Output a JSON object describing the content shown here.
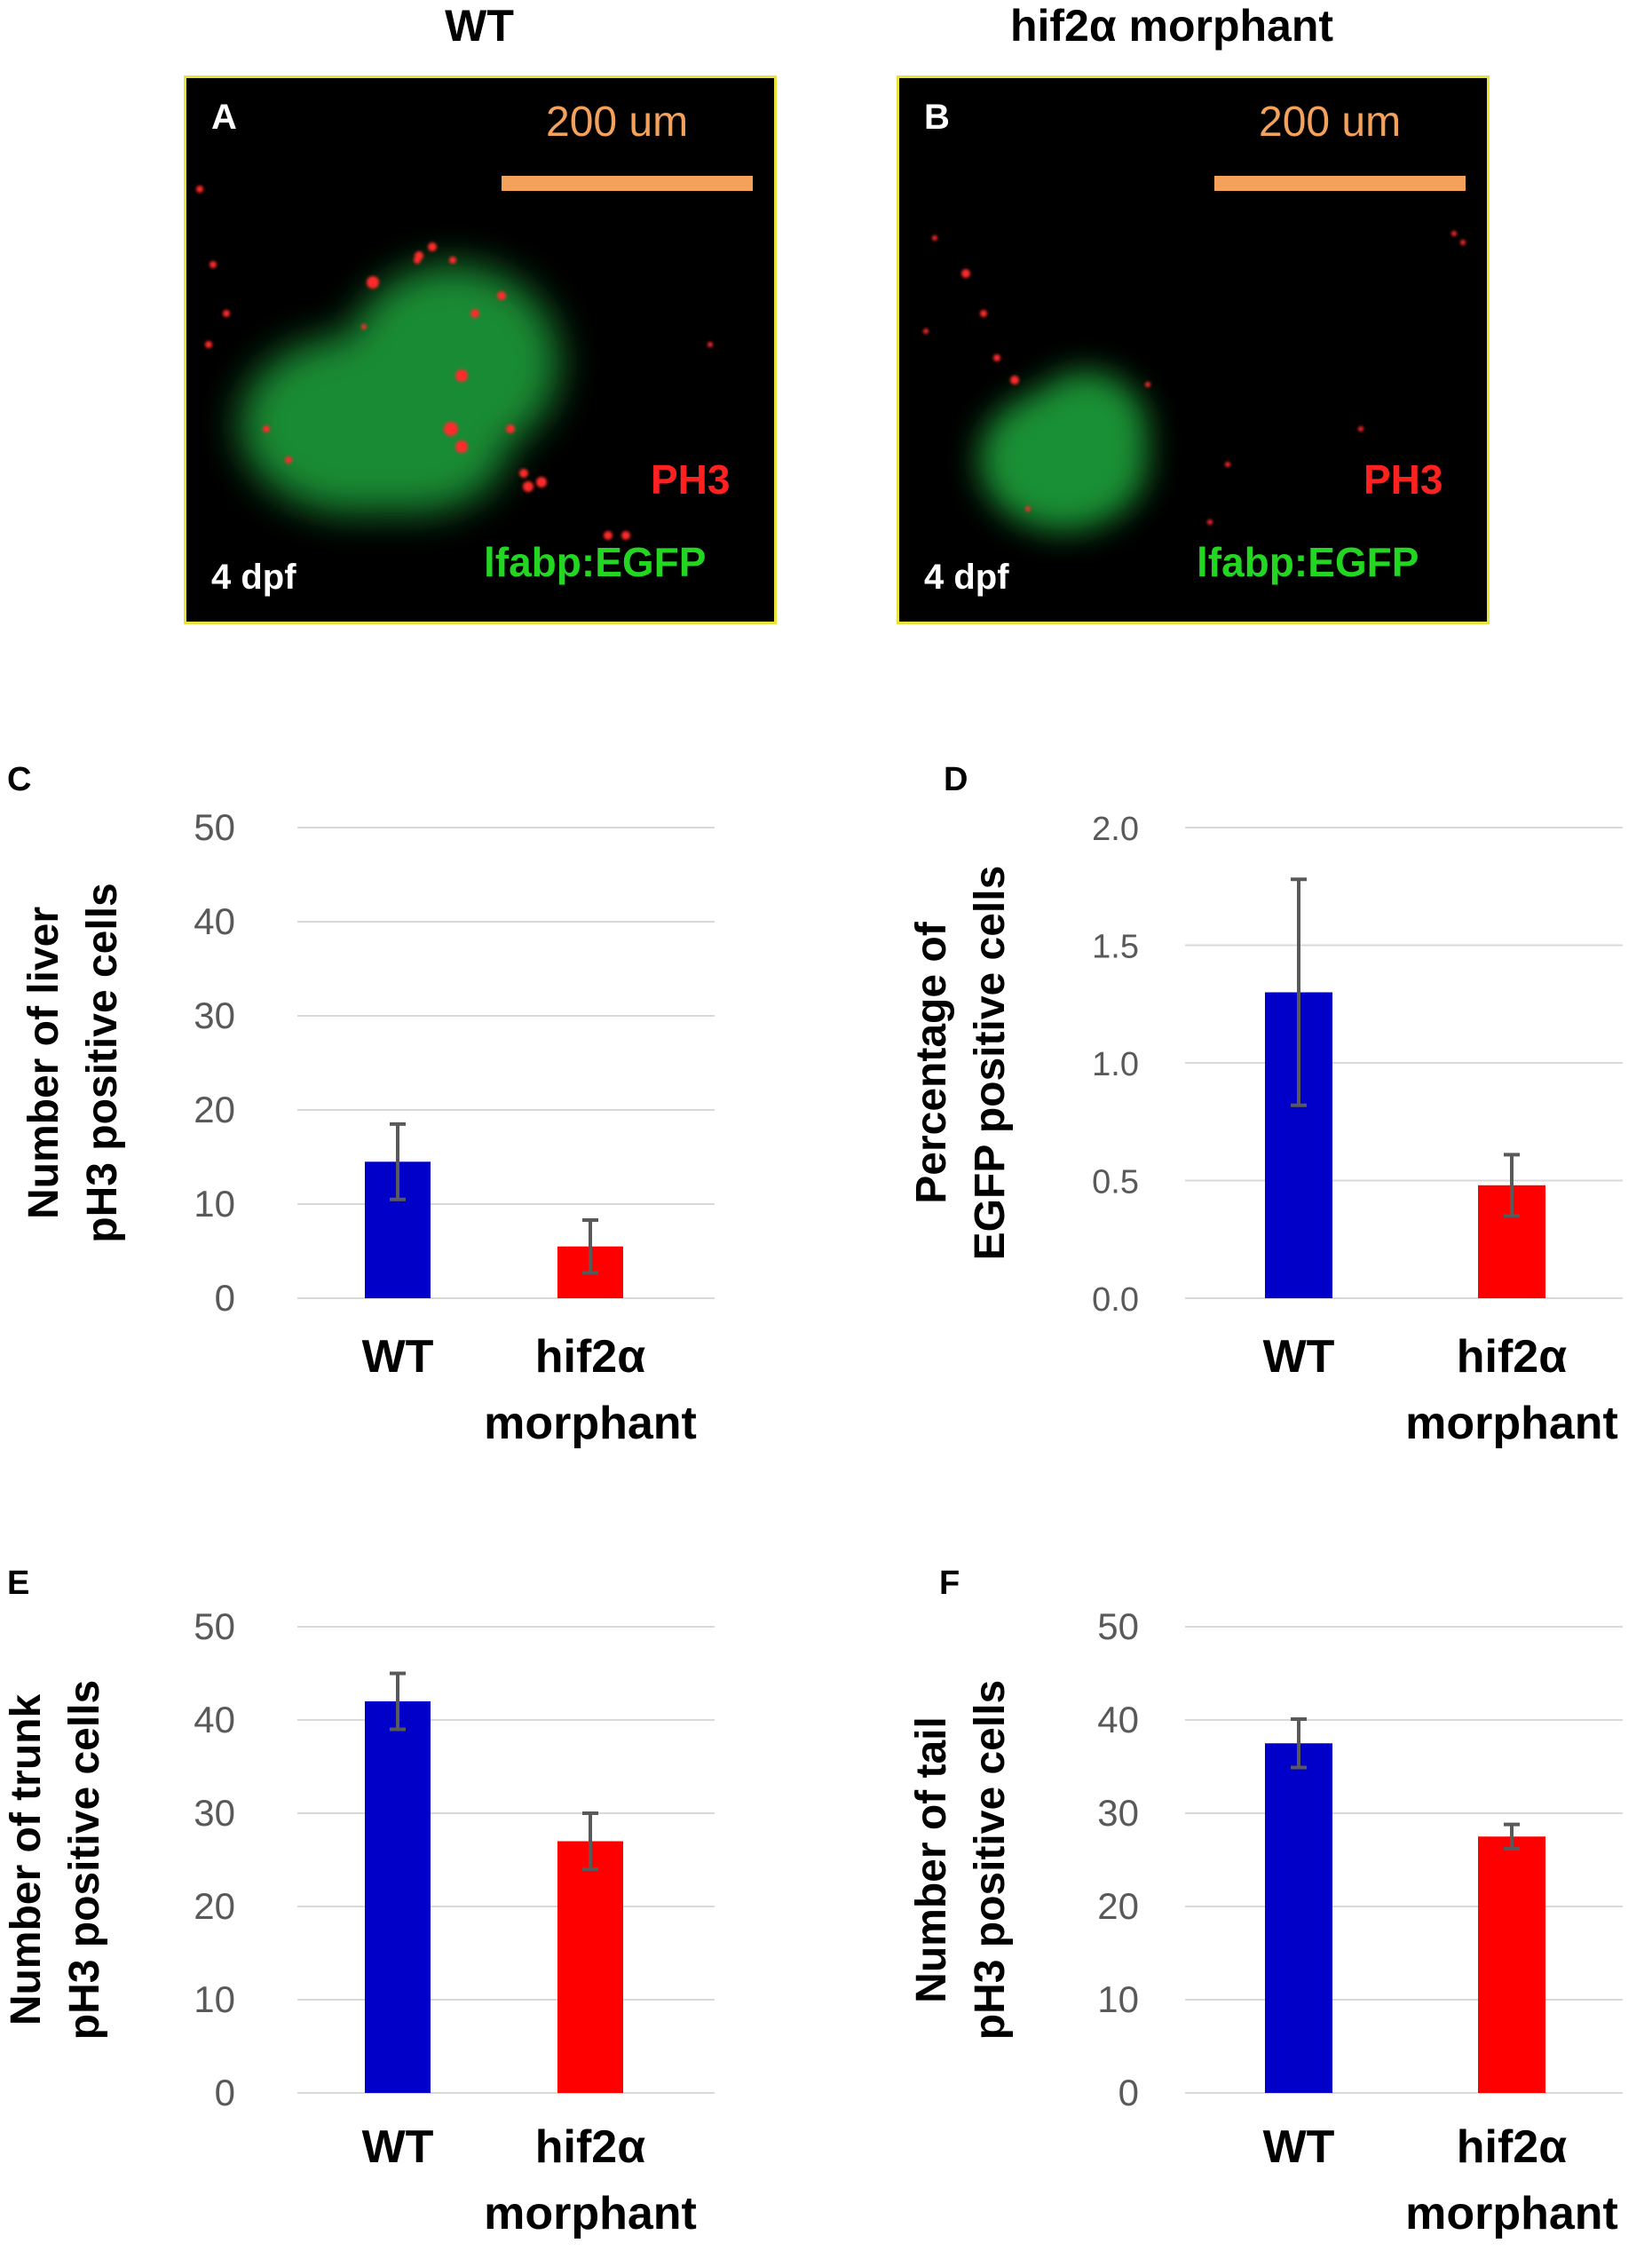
{
  "images": {
    "wt_title": "WT",
    "morphant_title": "hif2α morphant",
    "panel_a": {
      "letter": "A",
      "scale_text": "200 um",
      "stain": "PH3",
      "marker": "lfabp:EGFP",
      "stage": "4 dpf"
    },
    "panel_b": {
      "letter": "B",
      "scale_text": "200 um",
      "stain": "PH3",
      "marker": "lfabp:EGFP",
      "stage": "4 dpf"
    }
  },
  "colors": {
    "wt_bar": "#0000c8",
    "morphant_bar": "#ff0000",
    "error_bar": "#595959",
    "grid": "#d9d9d9",
    "frame": "#e8e23a",
    "scale_bar": "#f4a25b"
  },
  "chart_data": [
    {
      "panel": "C",
      "type": "bar",
      "ylabel": [
        "Number of liver",
        "pH3 positive cells"
      ],
      "categories": [
        [
          "WT"
        ],
        [
          "hif2α",
          "morphant"
        ]
      ],
      "values": [
        14.5,
        5.5
      ],
      "errors": [
        4.0,
        2.8
      ],
      "ylim": [
        0,
        50
      ],
      "yticks": [
        "0",
        "10",
        "20",
        "30",
        "40",
        "50"
      ],
      "grid": true
    },
    {
      "panel": "D",
      "type": "bar",
      "ylabel": [
        "Percentage of",
        "EGFP positive cells"
      ],
      "categories": [
        [
          "WT"
        ],
        [
          "hif2α",
          "morphant"
        ]
      ],
      "values": [
        1.3,
        0.48
      ],
      "errors": [
        0.48,
        0.13
      ],
      "ylim": [
        0,
        2.0
      ],
      "yticks": [
        "0.0",
        "0.5",
        "1.0",
        "1.5",
        "2.0"
      ],
      "grid": true
    },
    {
      "panel": "E",
      "type": "bar",
      "ylabel": [
        "Number of trunk",
        "pH3 positive cells"
      ],
      "categories": [
        [
          "WT"
        ],
        [
          "hif2α",
          "morphant"
        ]
      ],
      "values": [
        42,
        27
      ],
      "errors": [
        3.0,
        3.0
      ],
      "ylim": [
        0,
        50
      ],
      "yticks": [
        "0",
        "10",
        "20",
        "30",
        "40",
        "50"
      ],
      "grid": true
    },
    {
      "panel": "F",
      "type": "bar",
      "ylabel": [
        "Number of tail",
        "pH3 positive cells"
      ],
      "categories": [
        [
          "WT"
        ],
        [
          "hif2α",
          "morphant"
        ]
      ],
      "values": [
        37.5,
        27.5
      ],
      "errors": [
        2.6,
        1.3
      ],
      "ylim": [
        0,
        50
      ],
      "yticks": [
        "0",
        "10",
        "20",
        "30",
        "40",
        "50"
      ],
      "grid": true
    }
  ]
}
